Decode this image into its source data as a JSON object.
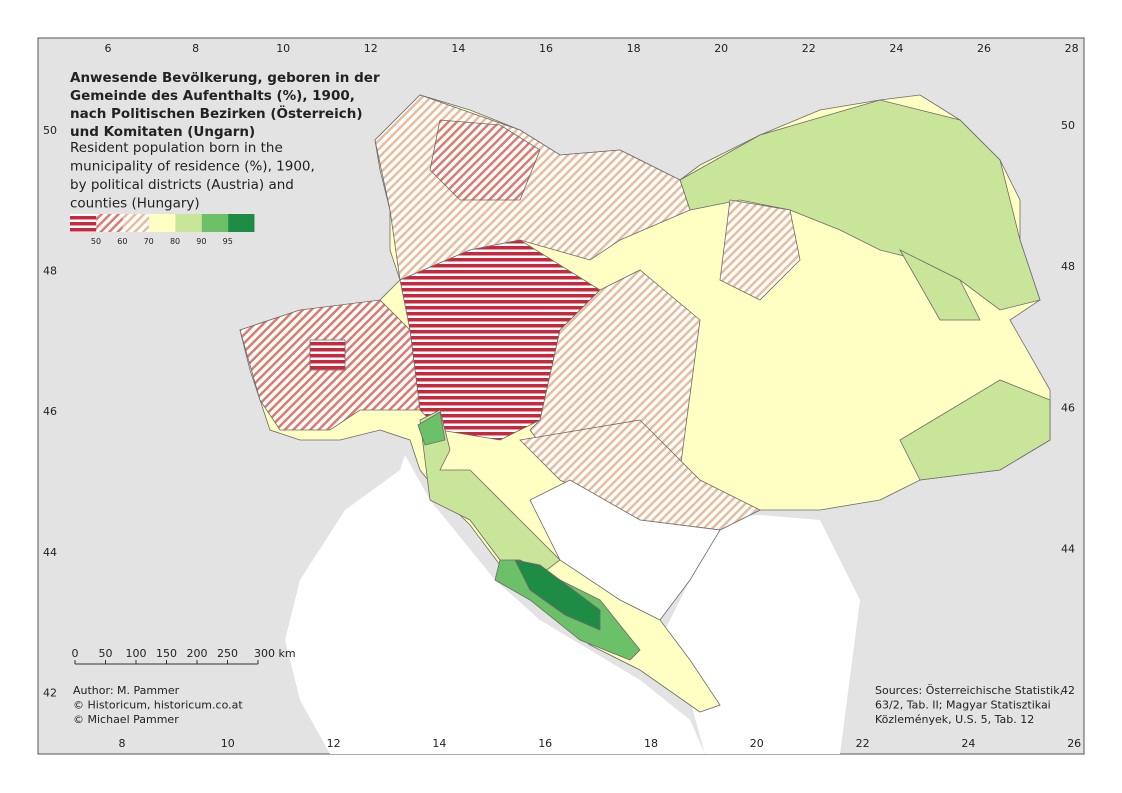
{
  "title": [
    "Anwesende Bevölkerung, geboren in der",
    "Gemeinde des Aufenthalts (%), 1900,",
    "nach Politischen Bezirken (Österreich)",
    "und Komitaten (Ungarn)"
  ],
  "subtitle": [
    "Resident population born in the",
    "municipality of residence (%), 1900,",
    "by political districts (Austria) and",
    "counties (Hungary)"
  ],
  "legend": {
    "labels": [
      50,
      60,
      70,
      80,
      90,
      95
    ],
    "colors": [
      "#c8283c",
      "#dc7a6e",
      "#e9bc9c",
      "#ffffc4",
      "#c9e59a",
      "#6cc067",
      "#1f8c45"
    ]
  },
  "graticule": {
    "top": [
      6,
      8,
      10,
      12,
      14,
      16,
      18,
      20,
      22,
      24,
      26,
      28
    ],
    "bottom": [
      8,
      10,
      12,
      14,
      16,
      18,
      20,
      22,
      24,
      26
    ],
    "left": [
      50,
      48,
      46,
      44,
      42
    ],
    "right": [
      50,
      48,
      46,
      44,
      42
    ]
  },
  "scale_bar": [
    "0",
    "50",
    "100",
    "150",
    "200",
    "250",
    "300 km"
  ],
  "author": [
    "Author: M. Pammer",
    "© Historicum, historicum.co.at",
    "© Michael Pammer"
  ],
  "sources": [
    "Sources: Österreichische Statistik,",
    "63/2, Tab. II; Magyar Statisztikai",
    "Közlemények, U.S. 5, Tab. 12"
  ]
}
